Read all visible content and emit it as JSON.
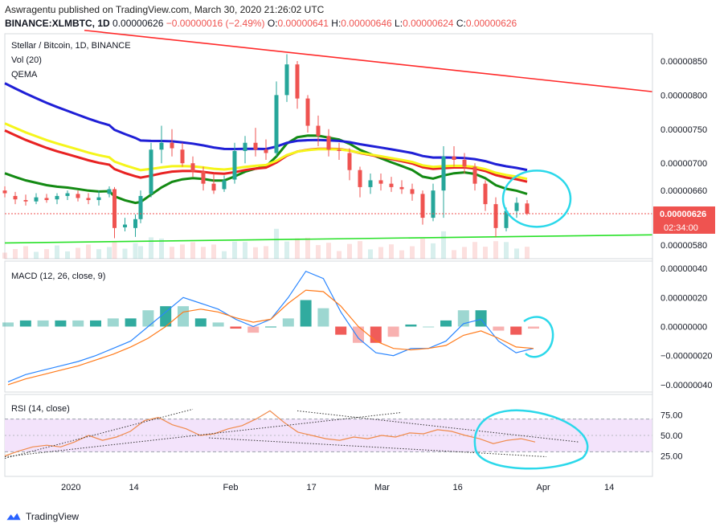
{
  "header": {
    "publisher_line": "Aswragentu published on TradingView.com, March 30, 2020 21:26:02 UTC",
    "symbol": "BINANCE:XLMBTC, 1D",
    "last": "0.00000626",
    "change": "−0.00000016 (−2.49%)",
    "o_label": "O:",
    "o": "0.00000641",
    "h_label": "H:",
    "h": "0.00000646",
    "l_label": "L:",
    "l": "0.00000624",
    "c_label": "C:",
    "c": "0.00000626"
  },
  "legend": {
    "title": "Stellar / Bitcoin, 1D, BINANCE",
    "vol": "Vol (20)",
    "qema": "QEMA",
    "macd": "MACD (12, 26, close, 9)",
    "rsi": "RSI (14, close)"
  },
  "price_axis": [
    "0.00000850",
    "0.00000800",
    "0.00000750",
    "0.00000700",
    "0.00000660",
    "0.00000580"
  ],
  "price_badge": "0.00000626",
  "time_badge": "02:34:00",
  "macd_axis": [
    "0.00000040",
    "0.00000020",
    "0.00000000",
    "−0.00000020",
    "−0.00000040"
  ],
  "rsi_axis": [
    "75.00",
    "50.00",
    "25.00"
  ],
  "x_axis": [
    "2020",
    "14",
    "Feb",
    "17",
    "Mar",
    "16",
    "Apr",
    "14"
  ],
  "footer": {
    "brand": "TradingView"
  },
  "colors": {
    "up": "#26a69a",
    "down": "#ef5350",
    "ema_green": "#138a13",
    "ema_red": "#e82222",
    "ema_blue": "#1f1fd6",
    "ema_yellow": "#f5f51b",
    "trend_red": "#ff2a2a",
    "trend_green": "#27e127",
    "annotation": "#2bd8ea",
    "rsi_line": "#f08a4b",
    "rsi_band": "#f3e3fb",
    "macd_blue": "#2a86ff",
    "macd_orange": "#ff7a1a",
    "badge": "#ef5350"
  },
  "annotations": {
    "circles": 3,
    "color": "cyan"
  },
  "chart_data": {
    "type": "candlestick",
    "x_range": [
      "2019-12-20",
      "2020-04-22"
    ],
    "ylim": [
      5.6e-06,
      8.9e-06
    ],
    "candles": [
      {
        "x": "2019-12-20",
        "o": 6.6,
        "h": 6.66,
        "l": 6.5,
        "c": 6.56
      },
      {
        "x": "2019-12-22",
        "o": 6.52,
        "h": 6.58,
        "l": 6.4,
        "c": 6.47
      },
      {
        "x": "2019-12-24",
        "o": 6.46,
        "h": 6.54,
        "l": 6.38,
        "c": 6.44
      },
      {
        "x": "2019-12-26",
        "o": 6.44,
        "h": 6.56,
        "l": 6.4,
        "c": 6.5
      },
      {
        "x": "2019-12-28",
        "o": 6.49,
        "h": 6.55,
        "l": 6.42,
        "c": 6.46
      },
      {
        "x": "2019-12-30",
        "o": 6.47,
        "h": 6.56,
        "l": 6.4,
        "c": 6.52
      },
      {
        "x": "2020-01-01",
        "o": 6.52,
        "h": 6.6,
        "l": 6.46,
        "c": 6.56
      },
      {
        "x": "2020-01-03",
        "o": 6.55,
        "h": 6.6,
        "l": 6.44,
        "c": 6.49
      },
      {
        "x": "2020-01-05",
        "o": 6.49,
        "h": 6.56,
        "l": 6.4,
        "c": 6.46
      },
      {
        "x": "2020-01-07",
        "o": 6.46,
        "h": 6.6,
        "l": 6.38,
        "c": 6.5
      },
      {
        "x": "2020-01-09",
        "o": 6.55,
        "h": 6.66,
        "l": 6.5,
        "c": 6.62
      },
      {
        "x": "2020-01-10",
        "o": 6.62,
        "h": 6.65,
        "l": 5.9,
        "c": 6.05
      },
      {
        "x": "2020-01-12",
        "o": 6.06,
        "h": 6.2,
        "l": 6.0,
        "c": 6.1
      },
      {
        "x": "2020-01-14",
        "o": 6.05,
        "h": 6.25,
        "l": 5.92,
        "c": 6.18
      },
      {
        "x": "2020-01-15",
        "o": 6.18,
        "h": 6.6,
        "l": 6.12,
        "c": 6.52
      },
      {
        "x": "2020-01-17",
        "o": 6.55,
        "h": 7.3,
        "l": 6.5,
        "c": 7.2
      },
      {
        "x": "2020-01-19",
        "o": 7.2,
        "h": 7.55,
        "l": 7.0,
        "c": 7.3
      },
      {
        "x": "2020-01-21",
        "o": 7.3,
        "h": 7.5,
        "l": 7.1,
        "c": 7.22
      },
      {
        "x": "2020-01-23",
        "o": 7.2,
        "h": 7.3,
        "l": 6.95,
        "c": 7.0
      },
      {
        "x": "2020-01-25",
        "o": 7.0,
        "h": 7.1,
        "l": 6.8,
        "c": 6.88
      },
      {
        "x": "2020-01-27",
        "o": 6.88,
        "h": 6.95,
        "l": 6.6,
        "c": 6.7
      },
      {
        "x": "2020-01-29",
        "o": 6.7,
        "h": 6.85,
        "l": 6.55,
        "c": 6.6
      },
      {
        "x": "2020-01-31",
        "o": 6.62,
        "h": 6.82,
        "l": 6.58,
        "c": 6.75
      },
      {
        "x": "2020-02-02",
        "o": 6.76,
        "h": 7.3,
        "l": 6.7,
        "c": 7.18
      },
      {
        "x": "2020-02-04",
        "o": 7.18,
        "h": 7.4,
        "l": 7.0,
        "c": 7.3
      },
      {
        "x": "2020-02-06",
        "o": 7.3,
        "h": 7.52,
        "l": 7.1,
        "c": 7.2
      },
      {
        "x": "2020-02-08",
        "o": 7.2,
        "h": 7.35,
        "l": 7.05,
        "c": 7.15
      },
      {
        "x": "2020-02-10",
        "o": 7.15,
        "h": 8.2,
        "l": 7.1,
        "c": 8.0
      },
      {
        "x": "2020-02-12",
        "o": 8.0,
        "h": 8.6,
        "l": 7.9,
        "c": 8.45
      },
      {
        "x": "2020-02-14",
        "o": 8.45,
        "h": 8.5,
        "l": 7.8,
        "c": 7.95
      },
      {
        "x": "2020-02-16",
        "o": 7.95,
        "h": 8.0,
        "l": 7.45,
        "c": 7.55
      },
      {
        "x": "2020-02-18",
        "o": 7.55,
        "h": 7.7,
        "l": 7.25,
        "c": 7.4
      },
      {
        "x": "2020-02-20",
        "o": 7.4,
        "h": 7.5,
        "l": 7.1,
        "c": 7.2
      },
      {
        "x": "2020-02-22",
        "o": 7.2,
        "h": 7.3,
        "l": 7.05,
        "c": 7.18
      },
      {
        "x": "2020-02-24",
        "o": 7.15,
        "h": 7.22,
        "l": 6.75,
        "c": 6.9
      },
      {
        "x": "2020-02-26",
        "o": 6.9,
        "h": 6.95,
        "l": 6.5,
        "c": 6.65
      },
      {
        "x": "2020-02-28",
        "o": 6.65,
        "h": 6.85,
        "l": 6.55,
        "c": 6.75
      },
      {
        "x": "2020-03-01",
        "o": 6.75,
        "h": 6.85,
        "l": 6.6,
        "c": 6.7
      },
      {
        "x": "2020-03-03",
        "o": 6.7,
        "h": 6.8,
        "l": 6.58,
        "c": 6.65
      },
      {
        "x": "2020-03-05",
        "o": 6.65,
        "h": 6.75,
        "l": 6.55,
        "c": 6.62
      },
      {
        "x": "2020-03-07",
        "o": 6.62,
        "h": 6.7,
        "l": 6.45,
        "c": 6.55
      },
      {
        "x": "2020-03-09",
        "o": 6.55,
        "h": 6.6,
        "l": 6.1,
        "c": 6.2
      },
      {
        "x": "2020-03-11",
        "o": 6.2,
        "h": 6.7,
        "l": 6.15,
        "c": 6.6
      },
      {
        "x": "2020-03-13",
        "o": 6.6,
        "h": 7.25,
        "l": 6.2,
        "c": 7.1
      },
      {
        "x": "2020-03-15",
        "o": 7.1,
        "h": 7.25,
        "l": 6.95,
        "c": 7.05
      },
      {
        "x": "2020-03-17",
        "o": 7.05,
        "h": 7.15,
        "l": 6.85,
        "c": 6.95
      },
      {
        "x": "2020-03-19",
        "o": 6.95,
        "h": 7.0,
        "l": 6.6,
        "c": 6.7
      },
      {
        "x": "2020-03-21",
        "o": 6.7,
        "h": 6.75,
        "l": 6.3,
        "c": 6.4
      },
      {
        "x": "2020-03-23",
        "o": 6.4,
        "h": 6.5,
        "l": 5.92,
        "c": 6.05
      },
      {
        "x": "2020-03-25",
        "o": 6.05,
        "h": 6.35,
        "l": 6.0,
        "c": 6.3
      },
      {
        "x": "2020-03-27",
        "o": 6.3,
        "h": 6.5,
        "l": 6.2,
        "c": 6.42
      },
      {
        "x": "2020-03-29",
        "o": 6.41,
        "h": 6.46,
        "l": 6.24,
        "c": 6.26
      }
    ],
    "price_scale_note": "values ×1e-6 BTC",
    "volume_shown": true,
    "moving_averages": [
      "green",
      "red",
      "blue",
      "yellow"
    ],
    "macd": {
      "range": [
        -4e-07,
        4e-07
      ],
      "macd_line": [
        -0.38,
        -0.33,
        -0.3,
        -0.27,
        -0.24,
        -0.2,
        -0.15,
        -0.1,
        0.0,
        0.1,
        0.2,
        0.16,
        0.12,
        0.05,
        0.0,
        0.05,
        0.2,
        0.38,
        0.33,
        0.1,
        -0.08,
        -0.18,
        -0.2,
        -0.15,
        -0.15,
        -0.1,
        0.02,
        0.05,
        -0.1,
        -0.18,
        -0.15
      ],
      "signal_line": [
        -0.4,
        -0.36,
        -0.33,
        -0.3,
        -0.27,
        -0.23,
        -0.19,
        -0.14,
        -0.08,
        0.0,
        0.1,
        0.12,
        0.1,
        0.06,
        0.03,
        0.05,
        0.16,
        0.25,
        0.24,
        0.14,
        0.0,
        -0.1,
        -0.15,
        -0.16,
        -0.15,
        -0.13,
        -0.06,
        -0.03,
        -0.08,
        -0.14,
        -0.15
      ],
      "histogram": [
        0.02,
        0.03,
        0.03,
        0.03,
        0.03,
        0.03,
        0.04,
        0.04,
        0.08,
        0.1,
        0.1,
        0.04,
        0.02,
        -0.01,
        -0.03,
        0.0,
        0.04,
        0.13,
        0.09,
        -0.04,
        -0.08,
        -0.08,
        -0.05,
        0.01,
        0.0,
        0.03,
        0.08,
        0.08,
        -0.02,
        -0.04,
        -0.01
      ]
    },
    "rsi": {
      "range": [
        0,
        100
      ],
      "bands": [
        70,
        50,
        30
      ],
      "values": [
        25,
        31,
        36,
        38,
        36,
        42,
        50,
        44,
        48,
        55,
        68,
        72,
        63,
        58,
        50,
        52,
        58,
        62,
        70,
        80,
        66,
        54,
        50,
        46,
        44,
        48,
        46,
        50,
        48,
        53,
        52,
        57,
        55,
        50,
        46,
        40,
        44,
        46,
        42
      ]
    },
    "trendlines": [
      "descending red resistance",
      "ascending green support",
      "dotted RSI triangle"
    ]
  }
}
